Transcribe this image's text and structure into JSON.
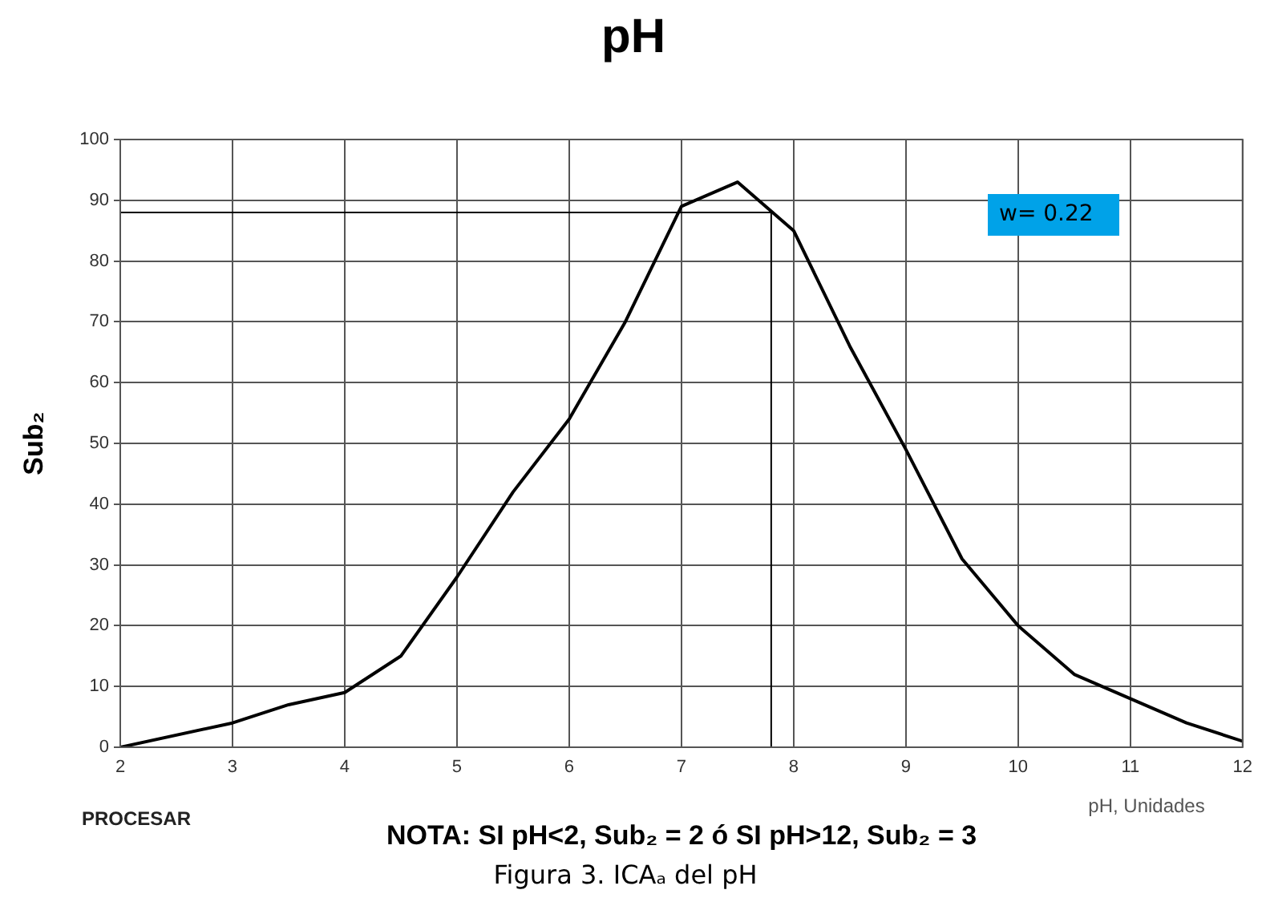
{
  "chart_data": {
    "type": "line",
    "title": "pH",
    "xlabel": "pH, Unidades",
    "ylabel": "Sub₂",
    "x": [
      2,
      3,
      3.5,
      4,
      4.5,
      5,
      5.5,
      6,
      6.5,
      7,
      7.5,
      8,
      8.5,
      9,
      9.5,
      10,
      10.5,
      11,
      11.5,
      12
    ],
    "series": [
      {
        "color": "#000000",
        "values": [
          0,
          4,
          7,
          9,
          15,
          28,
          42,
          54,
          70,
          89,
          93,
          85,
          66,
          49,
          31,
          20,
          12,
          8,
          4,
          1
        ]
      }
    ],
    "xlim": [
      2,
      12
    ],
    "xticks": [
      2,
      3,
      4,
      5,
      6,
      7,
      8,
      9,
      10,
      11,
      12
    ],
    "ylim": [
      0,
      100
    ],
    "yticks": [
      0,
      10,
      20,
      30,
      40,
      50,
      60,
      70,
      80,
      90,
      100
    ],
    "grid": true,
    "legend": false,
    "marker": "none",
    "line_style": "solid",
    "ref_lines": [
      {
        "axis": "y",
        "value": 88,
        "color": "#000000"
      },
      {
        "axis": "x",
        "value": 7.8,
        "color": "#000000"
      }
    ],
    "annotations": [
      "w= 0.22",
      "PROCESAR",
      "NOTA: SI pH<2, Sub₂ = 2 ó SI pH>12, Sub₂ = 3",
      "Figura 3. ICAₐ del pH"
    ]
  }
}
